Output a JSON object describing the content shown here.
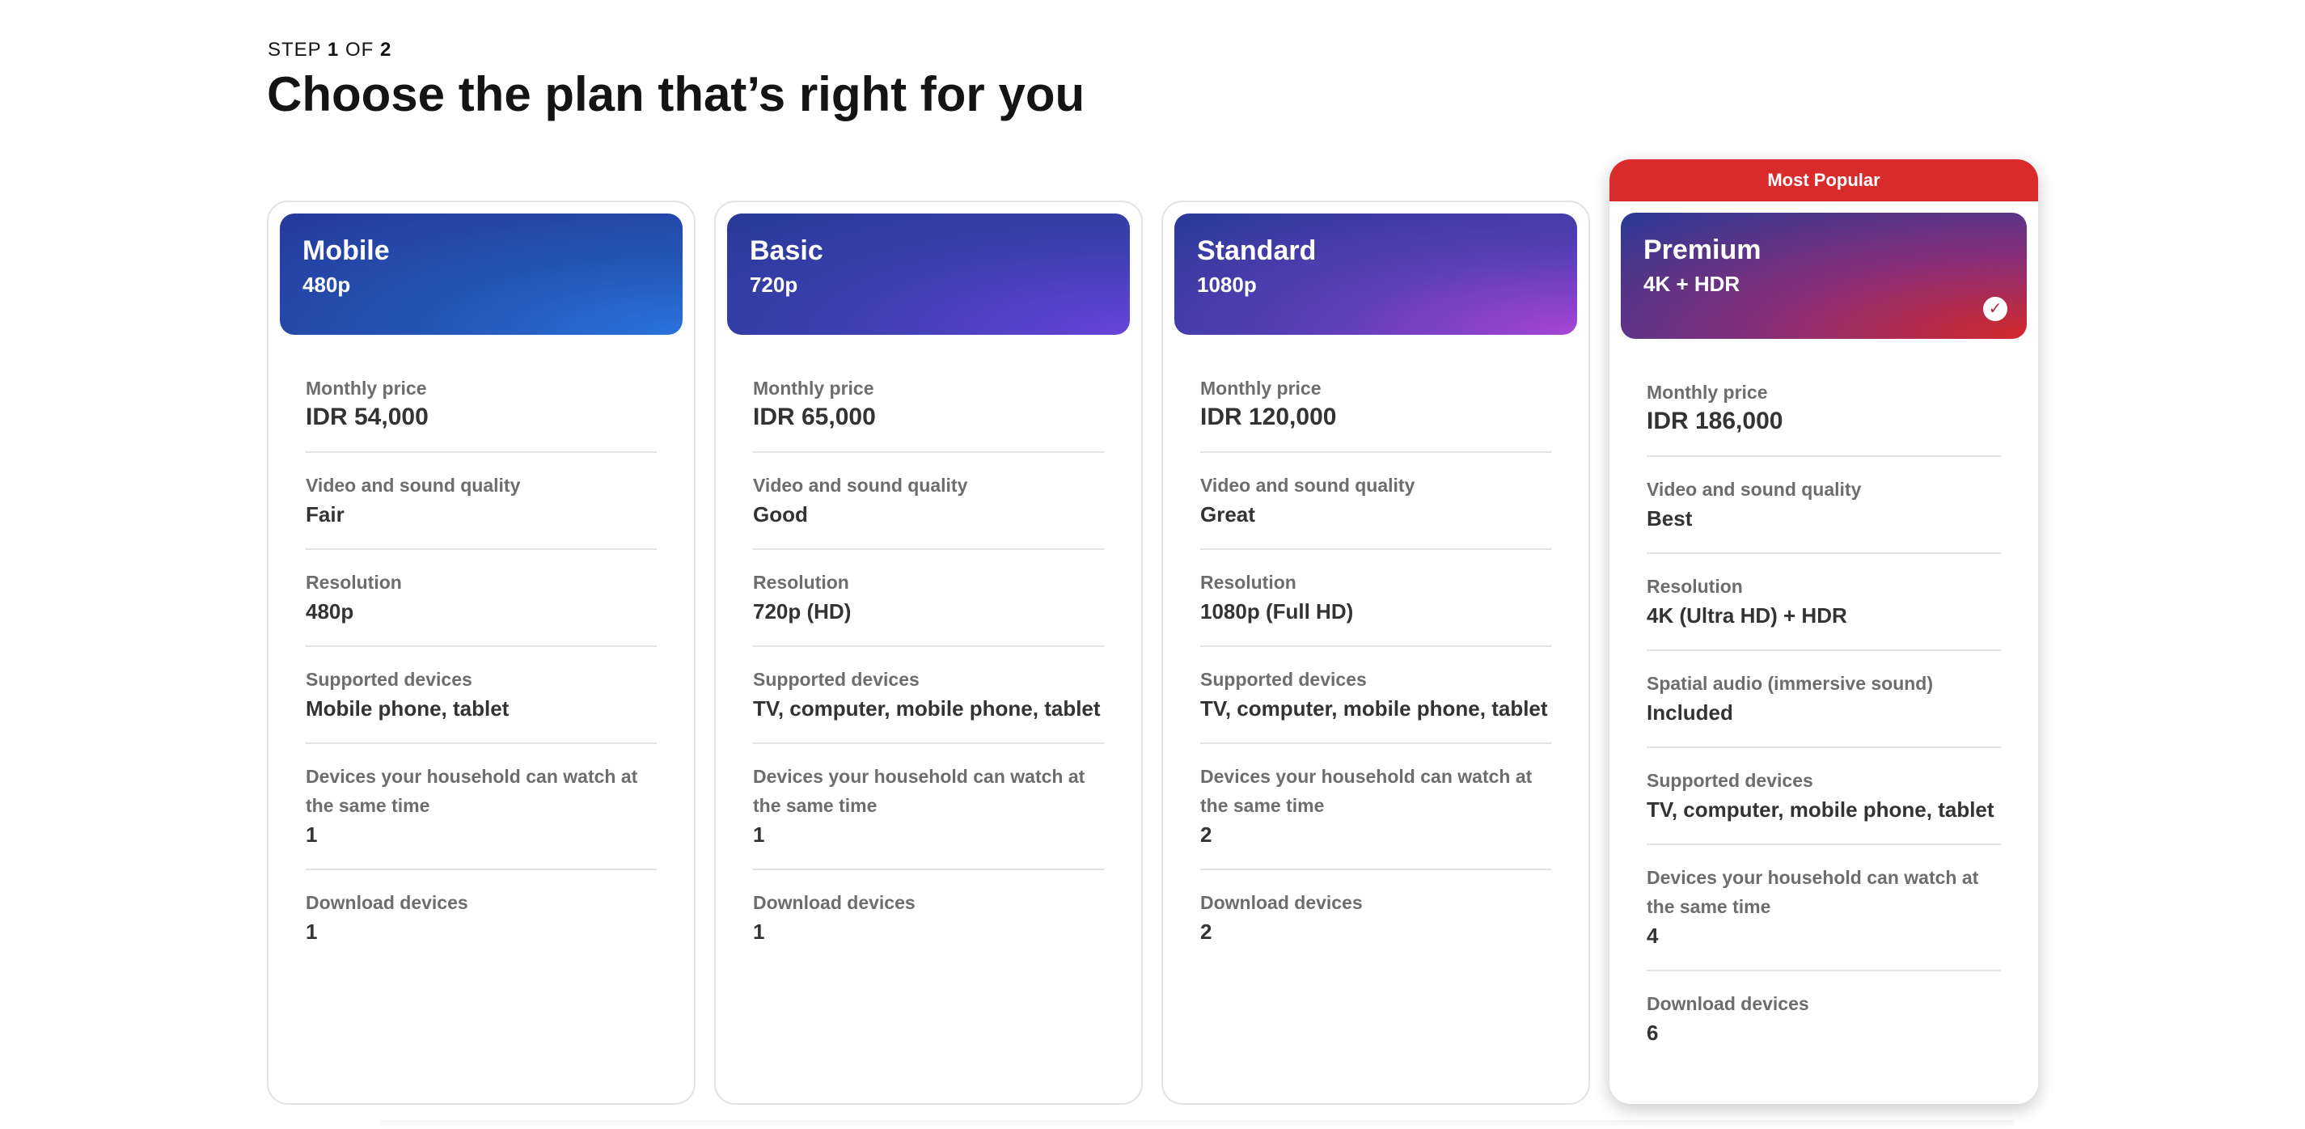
{
  "header": {
    "step_prefix": "STEP",
    "step_current": "1",
    "step_of": "OF",
    "step_total": "2",
    "title": "Choose the plan that’s right for you"
  },
  "plans": [
    {
      "name": "Mobile",
      "resolution_badge": "480p",
      "rows": [
        {
          "label": "Monthly price",
          "value": "IDR 54,000"
        },
        {
          "label": "Video and sound quality",
          "value": "Fair"
        },
        {
          "label": "Resolution",
          "value": "480p"
        },
        {
          "label": "Supported devices",
          "value": "Mobile phone, tablet"
        },
        {
          "label": "Devices your household can watch at the same time",
          "value": "1"
        },
        {
          "label": "Download devices",
          "value": "1"
        }
      ]
    },
    {
      "name": "Basic",
      "resolution_badge": "720p",
      "rows": [
        {
          "label": "Monthly price",
          "value": "IDR 65,000"
        },
        {
          "label": "Video and sound quality",
          "value": "Good"
        },
        {
          "label": "Resolution",
          "value": "720p (HD)"
        },
        {
          "label": "Supported devices",
          "value": "TV, computer, mobile phone, tablet"
        },
        {
          "label": "Devices your household can watch at the same time",
          "value": "1"
        },
        {
          "label": "Download devices",
          "value": "1"
        }
      ]
    },
    {
      "name": "Standard",
      "resolution_badge": "1080p",
      "rows": [
        {
          "label": "Monthly price",
          "value": "IDR 120,000"
        },
        {
          "label": "Video and sound quality",
          "value": "Great"
        },
        {
          "label": "Resolution",
          "value": "1080p (Full HD)"
        },
        {
          "label": "Supported devices",
          "value": "TV, computer, mobile phone, tablet"
        },
        {
          "label": "Devices your household can watch at the same time",
          "value": "2"
        },
        {
          "label": "Download devices",
          "value": "2"
        }
      ]
    },
    {
      "name": "Premium",
      "resolution_badge": "4K + HDR",
      "ribbon": "Most Popular",
      "selected": true,
      "rows": [
        {
          "label": "Monthly price",
          "value": "IDR 186,000"
        },
        {
          "label": "Video and sound quality",
          "value": "Best"
        },
        {
          "label": "Resolution",
          "value": "4K (Ultra HD) + HDR"
        },
        {
          "label": "Spatial audio (immersive sound)",
          "value": "Included"
        },
        {
          "label": "Supported devices",
          "value": "TV, computer, mobile phone, tablet"
        },
        {
          "label": "Devices your household can watch at the same time",
          "value": "4"
        },
        {
          "label": "Download devices",
          "value": "6"
        }
      ]
    }
  ],
  "icons": {
    "selected_check": "check-circle-icon"
  },
  "colors": {
    "ribbon": "#d92b2b",
    "border": "#e2e2e2",
    "label": "#6d6d6e",
    "value": "#333333"
  }
}
